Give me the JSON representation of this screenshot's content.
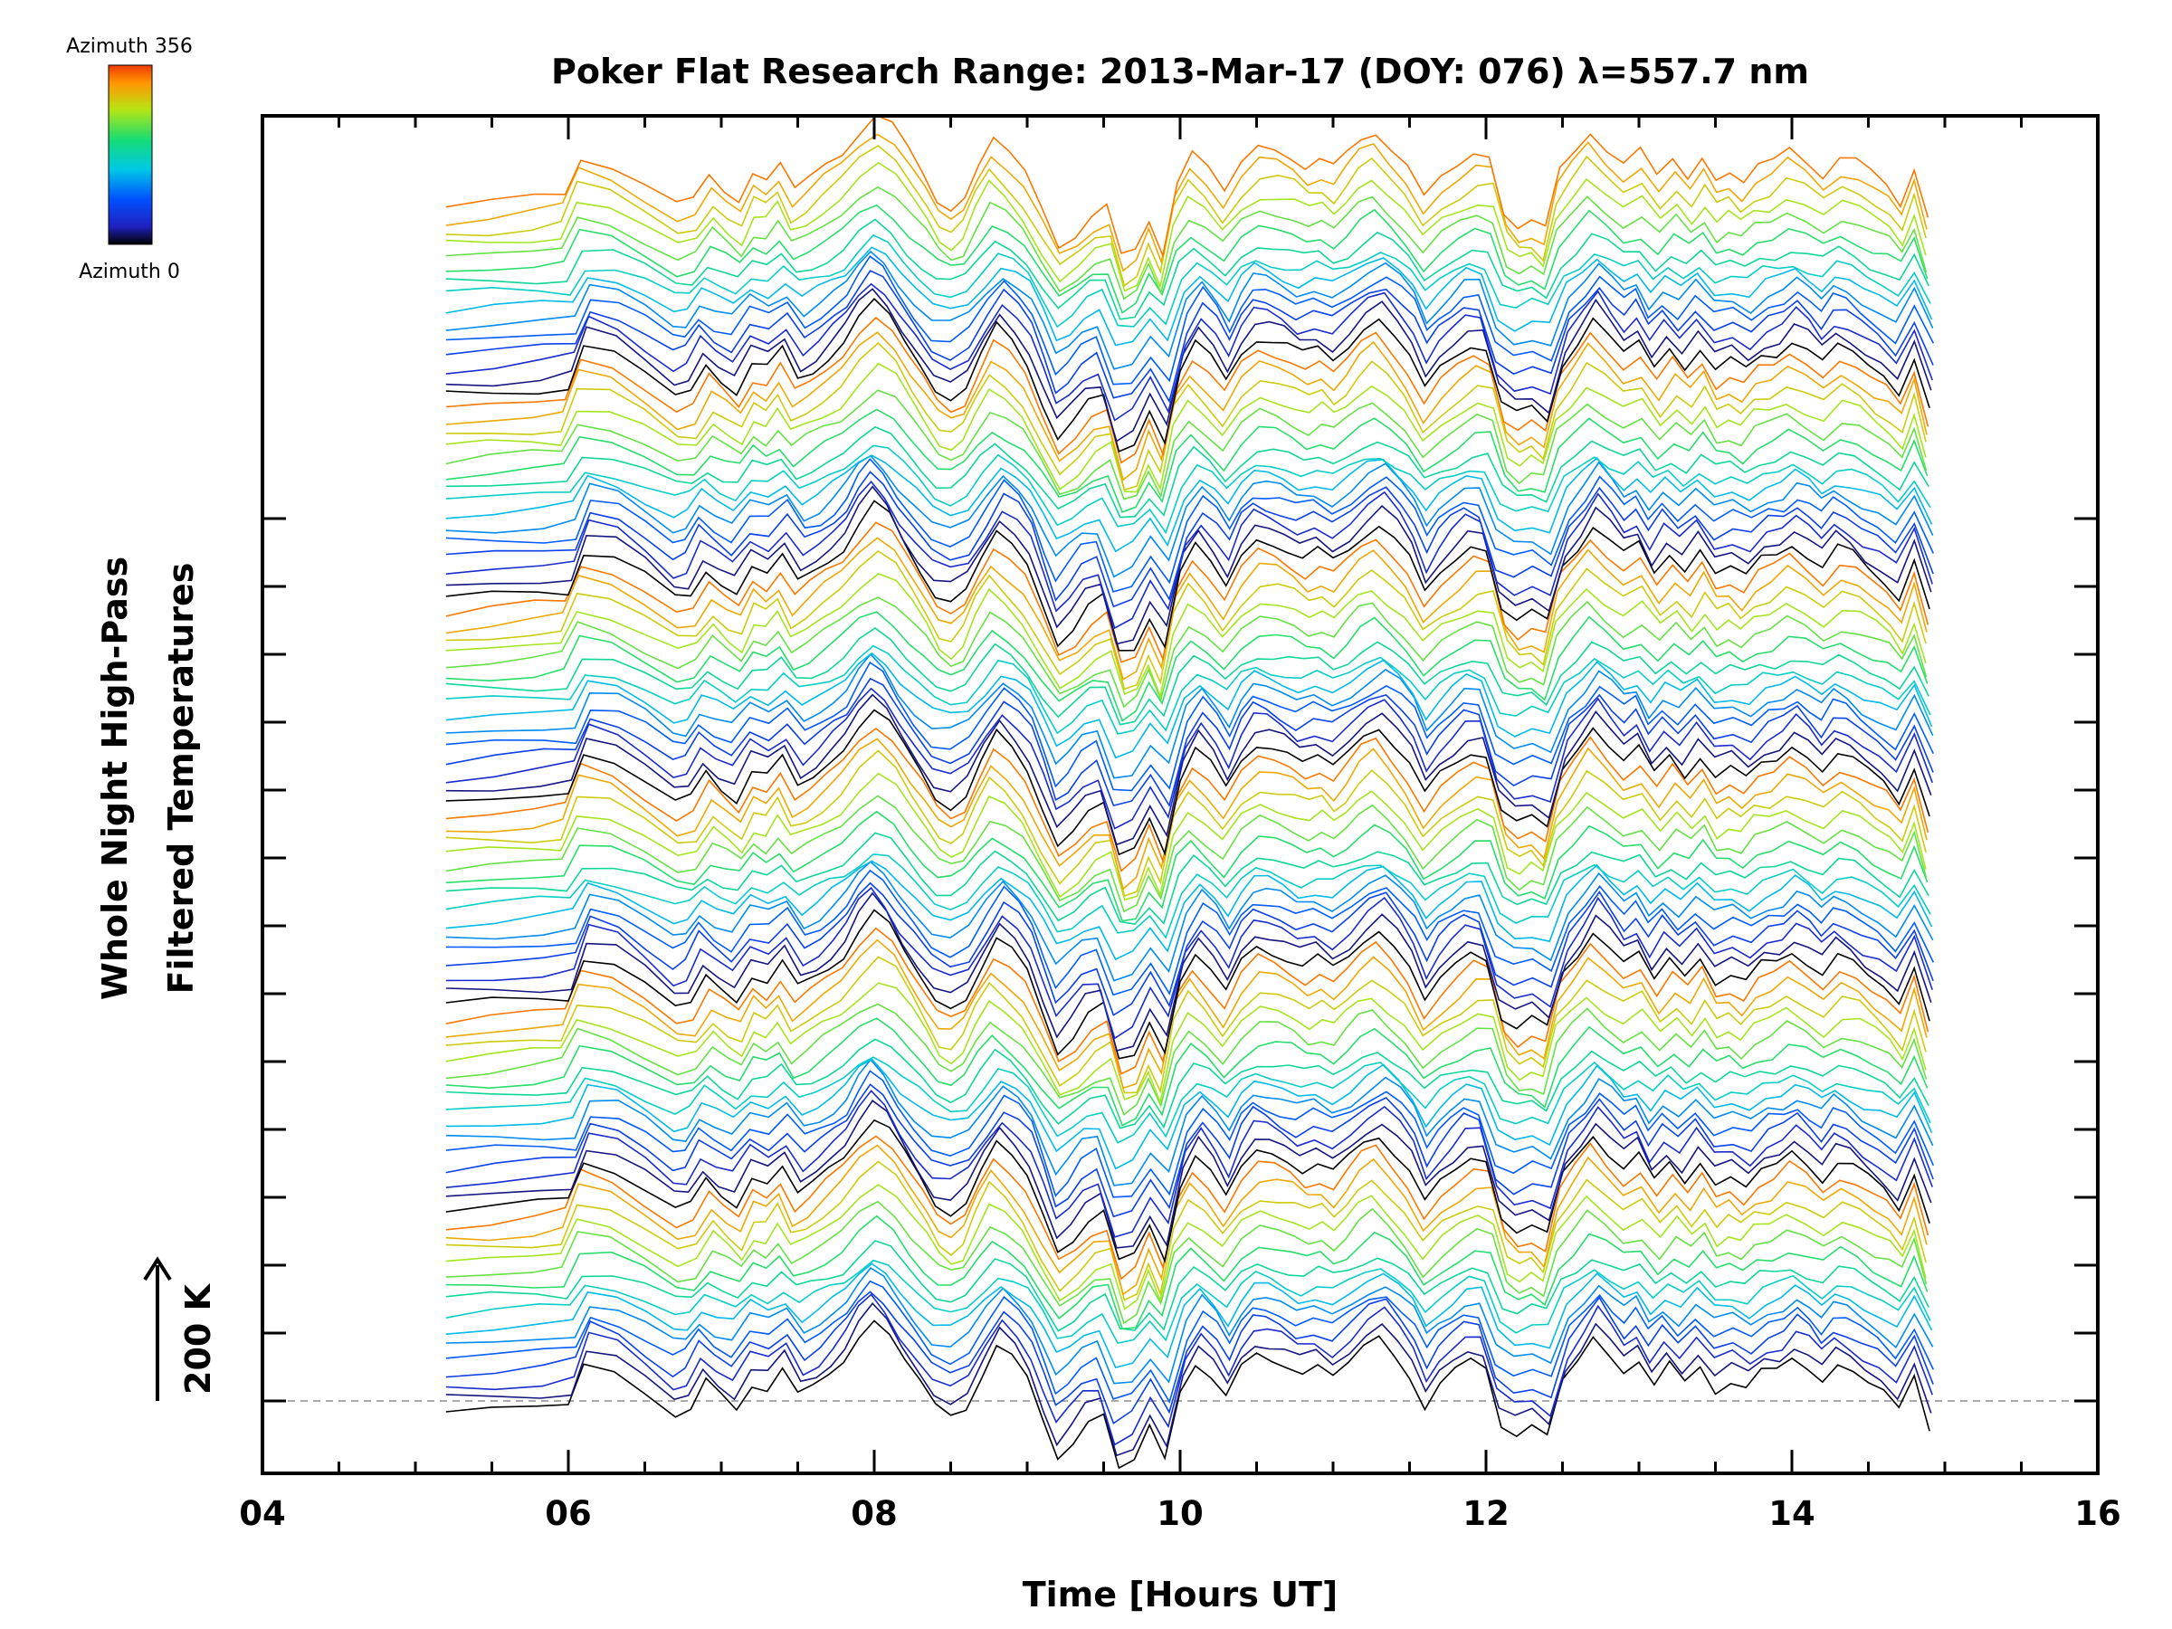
{
  "chart_data": {
    "type": "line",
    "title": "Poker Flat Research Range: 2013-Mar-17 (DOY: 076) λ=557.7 nm",
    "xlabel": "Time [Hours UT]",
    "ylabel_line1": "Whole Night High-Pass",
    "ylabel_line2": "Filtered Temperatures",
    "xlim": [
      4,
      16
    ],
    "xticks": [
      "04",
      "06",
      "08",
      "10",
      "12",
      "14",
      "16"
    ],
    "scale_bar_label": "200 K",
    "colorbar": {
      "label_top": "Azimuth 356",
      "label_bottom": "Azimuth 0",
      "min": 0,
      "max": 356
    },
    "time_range": [
      5.2,
      14.9
    ],
    "series_count": 90,
    "offset_step_K": 20,
    "baseline_K": 0,
    "azimuth_cycle_period": 15,
    "colormap_stops": [
      "#000000",
      "#2020c0",
      "#0050ff",
      "#00c8e6",
      "#14dc78",
      "#b4e614",
      "#ff9600",
      "#f03c00"
    ],
    "base_profile": {
      "hours": [
        5.2,
        5.5,
        5.8,
        6.0,
        6.1,
        6.3,
        6.5,
        6.7,
        6.8,
        6.9,
        7.0,
        7.1,
        7.2,
        7.3,
        7.4,
        7.5,
        7.6,
        7.7,
        7.8,
        7.9,
        8.0,
        8.1,
        8.2,
        8.3,
        8.4,
        8.5,
        8.6,
        8.7,
        8.8,
        8.9,
        9.0,
        9.1,
        9.2,
        9.3,
        9.4,
        9.5,
        9.6,
        9.7,
        9.8,
        9.9,
        10.0,
        10.1,
        10.2,
        10.3,
        10.4,
        10.5,
        10.6,
        10.7,
        10.8,
        10.9,
        11.0,
        11.1,
        11.2,
        11.3,
        11.4,
        11.5,
        11.6,
        11.7,
        11.8,
        11.9,
        12.0,
        12.1,
        12.2,
        12.3,
        12.4,
        12.5,
        12.6,
        12.7,
        12.8,
        12.9,
        13.0,
        13.1,
        13.2,
        13.3,
        13.4,
        13.5,
        13.6,
        13.7,
        13.8,
        13.9,
        14.0,
        14.1,
        14.2,
        14.3,
        14.4,
        14.5,
        14.6,
        14.7,
        14.8,
        14.9
      ],
      "temperature_K": [
        -20,
        -15,
        -10,
        -5,
        55,
        45,
        15,
        -20,
        -15,
        25,
        5,
        -10,
        30,
        20,
        45,
        5,
        20,
        40,
        60,
        95,
        120,
        100,
        60,
        25,
        -10,
        -20,
        -5,
        40,
        80,
        60,
        30,
        -25,
        -80,
        -60,
        -30,
        -20,
        -100,
        -90,
        -40,
        -85,
        20,
        60,
        35,
        0,
        45,
        70,
        65,
        55,
        40,
        50,
        35,
        55,
        80,
        95,
        70,
        40,
        -10,
        20,
        40,
        60,
        55,
        -30,
        -50,
        -40,
        -55,
        30,
        60,
        95,
        70,
        45,
        60,
        20,
        50,
        25,
        55,
        20,
        30,
        15,
        40,
        45,
        65,
        50,
        30,
        55,
        45,
        25,
        10,
        -15,
        40,
        -35
      ]
    }
  }
}
